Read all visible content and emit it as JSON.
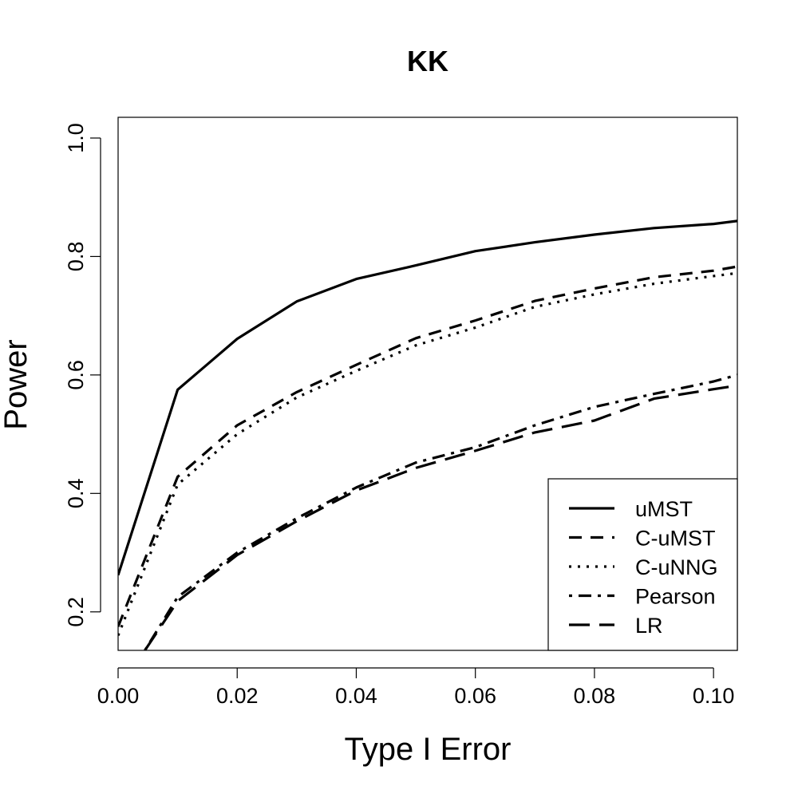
{
  "chart_data": {
    "type": "line",
    "title": "KK",
    "xlabel": "Type I Error",
    "ylabel": "Power",
    "xlim": [
      0.0,
      0.104
    ],
    "ylim": [
      0.135,
      1.035
    ],
    "xticks": [
      "0.00",
      "0.02",
      "0.04",
      "0.06",
      "0.08",
      "0.10"
    ],
    "yticks": [
      "0.2",
      "0.4",
      "0.6",
      "0.8",
      "1.0"
    ],
    "legend_position": "bottom-right",
    "series": [
      {
        "name": "uMST",
        "style": "solid",
        "x": [
          0.0,
          0.01,
          0.02,
          0.03,
          0.04,
          0.05,
          0.06,
          0.07,
          0.08,
          0.09,
          0.1,
          0.104
        ],
        "y": [
          0.262,
          0.575,
          0.661,
          0.724,
          0.762,
          0.785,
          0.809,
          0.824,
          0.837,
          0.848,
          0.855,
          0.86
        ]
      },
      {
        "name": "C-uMST",
        "style": "dashed",
        "x": [
          0.0,
          0.01,
          0.02,
          0.03,
          0.04,
          0.05,
          0.06,
          0.07,
          0.08,
          0.09,
          0.1,
          0.104
        ],
        "y": [
          0.175,
          0.428,
          0.515,
          0.571,
          0.617,
          0.662,
          0.692,
          0.725,
          0.746,
          0.765,
          0.776,
          0.783
        ]
      },
      {
        "name": "C-uNNG",
        "style": "dotted",
        "x": [
          0.0,
          0.01,
          0.02,
          0.03,
          0.04,
          0.05,
          0.06,
          0.07,
          0.08,
          0.09,
          0.1,
          0.104
        ],
        "y": [
          0.16,
          0.415,
          0.5,
          0.562,
          0.607,
          0.65,
          0.68,
          0.715,
          0.736,
          0.754,
          0.767,
          0.772
        ]
      },
      {
        "name": "Pearson",
        "style": "dotdash",
        "x": [
          0.0045,
          0.01,
          0.02,
          0.03,
          0.04,
          0.05,
          0.06,
          0.07,
          0.08,
          0.09,
          0.1,
          0.104
        ],
        "y": [
          0.135,
          0.225,
          0.3,
          0.358,
          0.41,
          0.452,
          0.478,
          0.515,
          0.546,
          0.568,
          0.589,
          0.6
        ]
      },
      {
        "name": "LR",
        "style": "longdash",
        "x": [
          0.0045,
          0.01,
          0.02,
          0.03,
          0.04,
          0.05,
          0.06,
          0.07,
          0.08,
          0.09,
          0.1,
          0.104
        ],
        "y": [
          0.135,
          0.218,
          0.296,
          0.353,
          0.405,
          0.443,
          0.472,
          0.503,
          0.523,
          0.56,
          0.576,
          0.582
        ]
      }
    ]
  }
}
